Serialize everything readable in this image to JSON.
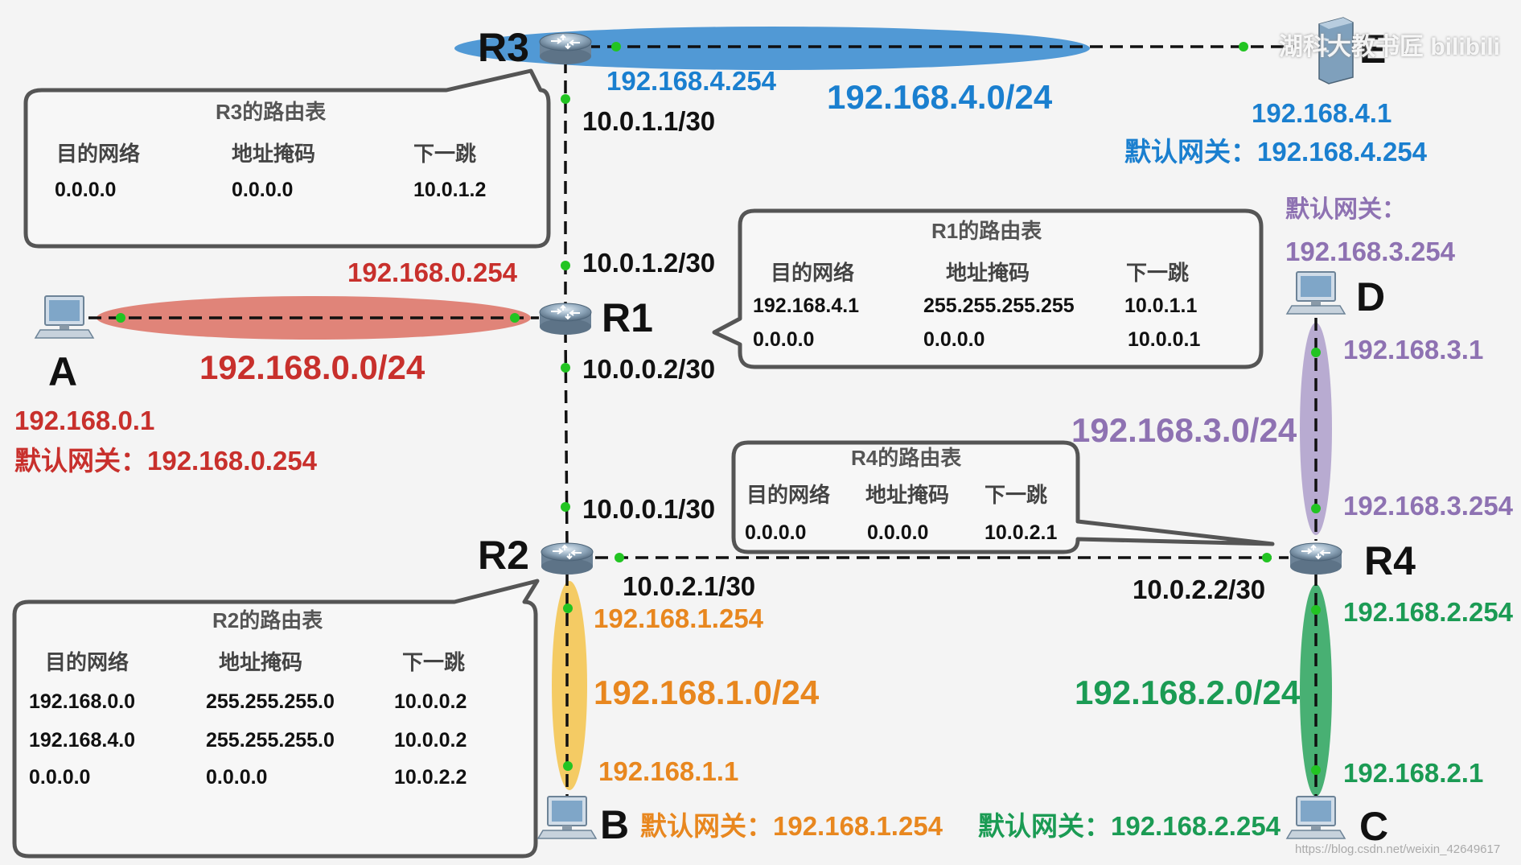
{
  "colors": {
    "red": "#c8302c",
    "blue": "#1a7fcf",
    "purple": "#8e72b2",
    "orange": "#e8871f",
    "green": "#1b9b54",
    "black": "#111111",
    "link_dot": "#22c422"
  },
  "watermark": "湖科大教书匠 bilibili",
  "url_watermark": "https://blog.csdn.net/weixin_42649617",
  "nodes": {
    "r1": "R1",
    "r2": "R2",
    "r3": "R3",
    "r4": "R4",
    "a": "A",
    "b": "B",
    "c": "C",
    "d": "D",
    "e": "E"
  },
  "icons": {
    "router": "router-icon",
    "pc": "computer-icon",
    "server": "server-icon"
  },
  "networks": {
    "net0": "192.168.0.0/24",
    "net1": "192.168.1.0/24",
    "net2": "192.168.2.0/24",
    "net3": "192.168.3.0/24",
    "net4": "192.168.4.0/24"
  },
  "interfaces": {
    "r3_lan": "192.168.4.254",
    "r3_wan": "10.0.1.1/30",
    "r1_to_r3": "10.0.1.2/30",
    "r1_lan": "192.168.0.254",
    "r1_to_r2": "10.0.0.2/30",
    "r2_to_r1": "10.0.0.1/30",
    "r2_to_r4": "10.0.2.1/30",
    "r4_to_r2": "10.0.2.2/30",
    "r2_lan": "192.168.1.254",
    "r4_lan2": "192.168.2.254",
    "r4_lan3": "192.168.3.254"
  },
  "hosts": {
    "a_ip": "192.168.0.1",
    "a_gw": "默认网关：192.168.0.254",
    "b_ip": "192.168.1.1",
    "b_gw": "默认网关：192.168.1.254",
    "c_ip": "192.168.2.1",
    "c_gw": "默认网关：192.168.2.254",
    "d_ip": "192.168.3.1",
    "d_gw_label": "默认网关：",
    "d_gw": "192.168.3.254",
    "e_ip": "192.168.4.1",
    "e_gw": "默认网关：192.168.4.254"
  },
  "tables": {
    "headers": {
      "dest": "目的网络",
      "mask": "地址掩码",
      "next": "下一跳"
    },
    "r3": {
      "title": "R3的路由表",
      "rows": [
        [
          "0.0.0.0",
          "0.0.0.0",
          "10.0.1.2"
        ]
      ]
    },
    "r1": {
      "title": "R1的路由表",
      "rows": [
        [
          "192.168.4.1",
          "255.255.255.255",
          "10.0.1.1"
        ],
        [
          "0.0.0.0",
          "0.0.0.0",
          "10.0.0.1"
        ]
      ]
    },
    "r4": {
      "title": "R4的路由表",
      "rows": [
        [
          "0.0.0.0",
          "0.0.0.0",
          "10.0.2.1"
        ]
      ]
    },
    "r2": {
      "title": "R2的路由表",
      "rows": [
        [
          "192.168.0.0",
          "255.255.255.0",
          "10.0.0.2"
        ],
        [
          "192.168.4.0",
          "255.255.255.0",
          "10.0.0.2"
        ],
        [
          "0.0.0.0",
          "0.0.0.0",
          "10.0.2.2"
        ]
      ]
    }
  }
}
